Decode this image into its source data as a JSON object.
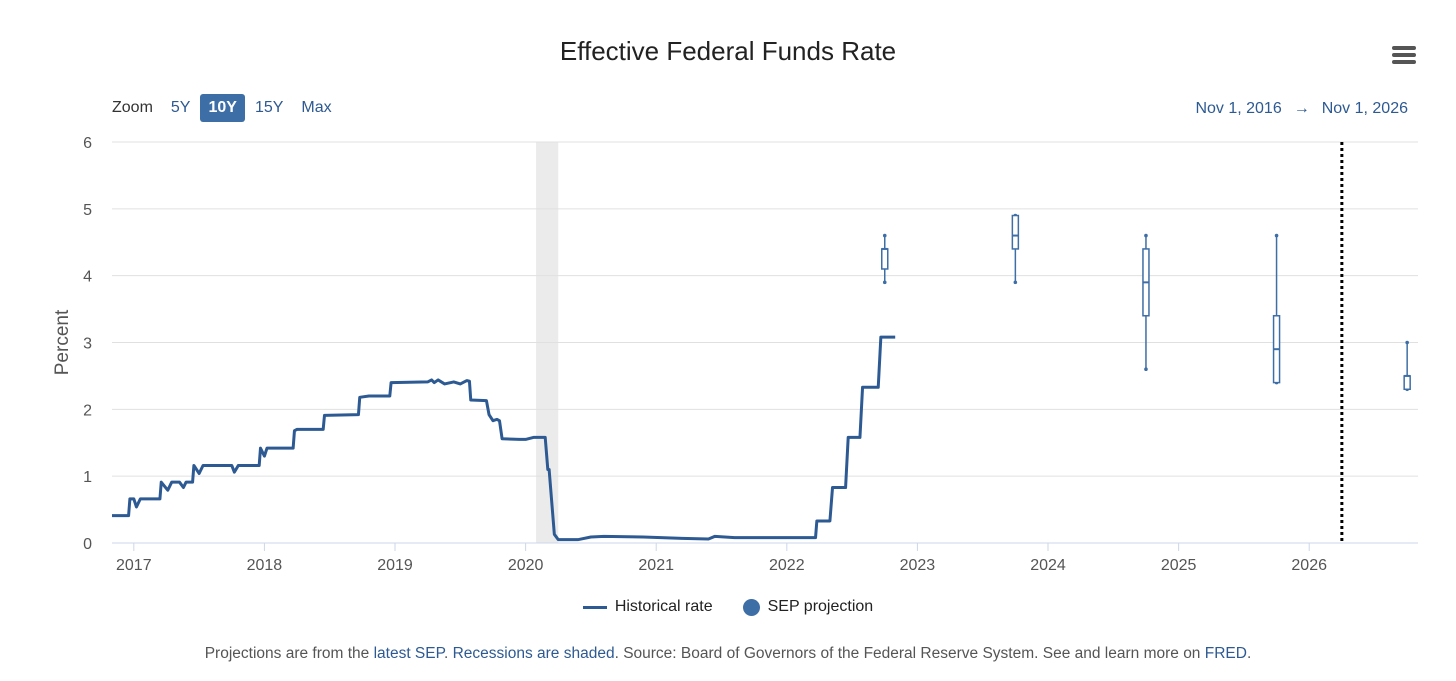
{
  "chart_data": {
    "type": "line",
    "title": "Effective Federal Funds Rate",
    "ylabel": "Percent",
    "xlabel": "",
    "ylim": [
      0,
      6
    ],
    "xlim": [
      2016.833,
      2026.833
    ],
    "yticks": [
      "0",
      "1",
      "2",
      "3",
      "4",
      "5",
      "6"
    ],
    "xticks": [
      "2017",
      "2018",
      "2019",
      "2020",
      "2021",
      "2022",
      "2023",
      "2024",
      "2025",
      "2026"
    ],
    "grid": true,
    "legend_position": "bottom",
    "recessions": [
      [
        2020.08,
        2020.25
      ]
    ],
    "separator_x": 2026.25,
    "series": [
      {
        "name": "Historical rate",
        "color": "#2d5a92",
        "points": [
          [
            2016.833,
            0.41
          ],
          [
            2016.96,
            0.41
          ],
          [
            2016.97,
            0.66
          ],
          [
            2017.0,
            0.66
          ],
          [
            2017.02,
            0.54
          ],
          [
            2017.05,
            0.66
          ],
          [
            2017.2,
            0.66
          ],
          [
            2017.21,
            0.91
          ],
          [
            2017.26,
            0.79
          ],
          [
            2017.29,
            0.91
          ],
          [
            2017.35,
            0.91
          ],
          [
            2017.38,
            0.83
          ],
          [
            2017.4,
            0.91
          ],
          [
            2017.45,
            0.91
          ],
          [
            2017.46,
            1.16
          ],
          [
            2017.5,
            1.04
          ],
          [
            2017.53,
            1.16
          ],
          [
            2017.75,
            1.16
          ],
          [
            2017.77,
            1.06
          ],
          [
            2017.8,
            1.16
          ],
          [
            2017.96,
            1.16
          ],
          [
            2017.97,
            1.42
          ],
          [
            2018.0,
            1.3
          ],
          [
            2018.02,
            1.42
          ],
          [
            2018.22,
            1.42
          ],
          [
            2018.23,
            1.68
          ],
          [
            2018.25,
            1.7
          ],
          [
            2018.45,
            1.7
          ],
          [
            2018.46,
            1.91
          ],
          [
            2018.72,
            1.92
          ],
          [
            2018.73,
            2.18
          ],
          [
            2018.8,
            2.2
          ],
          [
            2018.96,
            2.2
          ],
          [
            2018.97,
            2.4
          ],
          [
            2019.25,
            2.41
          ],
          [
            2019.28,
            2.44
          ],
          [
            2019.3,
            2.4
          ],
          [
            2019.33,
            2.44
          ],
          [
            2019.38,
            2.38
          ],
          [
            2019.45,
            2.41
          ],
          [
            2019.5,
            2.38
          ],
          [
            2019.55,
            2.43
          ],
          [
            2019.57,
            2.42
          ],
          [
            2019.58,
            2.14
          ],
          [
            2019.7,
            2.13
          ],
          [
            2019.72,
            1.92
          ],
          [
            2019.75,
            1.83
          ],
          [
            2019.78,
            1.85
          ],
          [
            2019.8,
            1.83
          ],
          [
            2019.82,
            1.56
          ],
          [
            2019.95,
            1.55
          ],
          [
            2020.0,
            1.55
          ],
          [
            2020.06,
            1.58
          ],
          [
            2020.15,
            1.58
          ],
          [
            2020.17,
            1.1
          ],
          [
            2020.18,
            1.1
          ],
          [
            2020.22,
            0.13
          ],
          [
            2020.25,
            0.05
          ],
          [
            2020.4,
            0.05
          ],
          [
            2020.5,
            0.09
          ],
          [
            2020.6,
            0.1
          ],
          [
            2020.9,
            0.09
          ],
          [
            2021.2,
            0.07
          ],
          [
            2021.4,
            0.06
          ],
          [
            2021.45,
            0.1
          ],
          [
            2021.6,
            0.08
          ],
          [
            2022.0,
            0.08
          ],
          [
            2022.22,
            0.08
          ],
          [
            2022.23,
            0.33
          ],
          [
            2022.33,
            0.33
          ],
          [
            2022.35,
            0.83
          ],
          [
            2022.45,
            0.83
          ],
          [
            2022.47,
            1.58
          ],
          [
            2022.56,
            1.58
          ],
          [
            2022.58,
            2.33
          ],
          [
            2022.7,
            2.33
          ],
          [
            2022.72,
            3.08
          ],
          [
            2022.83,
            3.08
          ]
        ]
      },
      {
        "name": "SEP projection",
        "color": "#3e6ea6",
        "boxes": [
          {
            "x": 2022.75,
            "low": 3.9,
            "q1": 4.1,
            "median": 4.4,
            "q3": 4.4,
            "high": 4.6
          },
          {
            "x": 2023.75,
            "low": 3.9,
            "q1": 4.4,
            "median": 4.6,
            "q3": 4.9,
            "high": 4.9
          },
          {
            "x": 2024.75,
            "low": 2.6,
            "q1": 3.4,
            "median": 3.9,
            "q3": 4.4,
            "high": 4.6
          },
          {
            "x": 2025.75,
            "low": 2.4,
            "q1": 2.4,
            "median": 2.9,
            "q3": 3.4,
            "high": 4.6
          },
          {
            "x": 2026.75,
            "low": 2.3,
            "q1": 2.3,
            "median": 2.5,
            "q3": 2.5,
            "high": 3.0
          }
        ]
      }
    ]
  },
  "zoom": {
    "label": "Zoom",
    "buttons": [
      "5Y",
      "10Y",
      "15Y",
      "Max"
    ],
    "active": "10Y"
  },
  "range": {
    "from": "Nov 1, 2016",
    "arrow": "→",
    "to": "Nov 1, 2026"
  },
  "legend": {
    "historical": "Historical rate",
    "sep": "SEP projection"
  },
  "footer": {
    "t1": "Projections are from the ",
    "l1": "latest SEP",
    "t2": ". ",
    "l2": "Recessions are shaded",
    "t3": ". Source: Board of Governors of the Federal Reserve System. See and learn more on ",
    "l3": "FRED",
    "t4": "."
  },
  "icons": {
    "menu": "hamburger-menu-icon"
  }
}
